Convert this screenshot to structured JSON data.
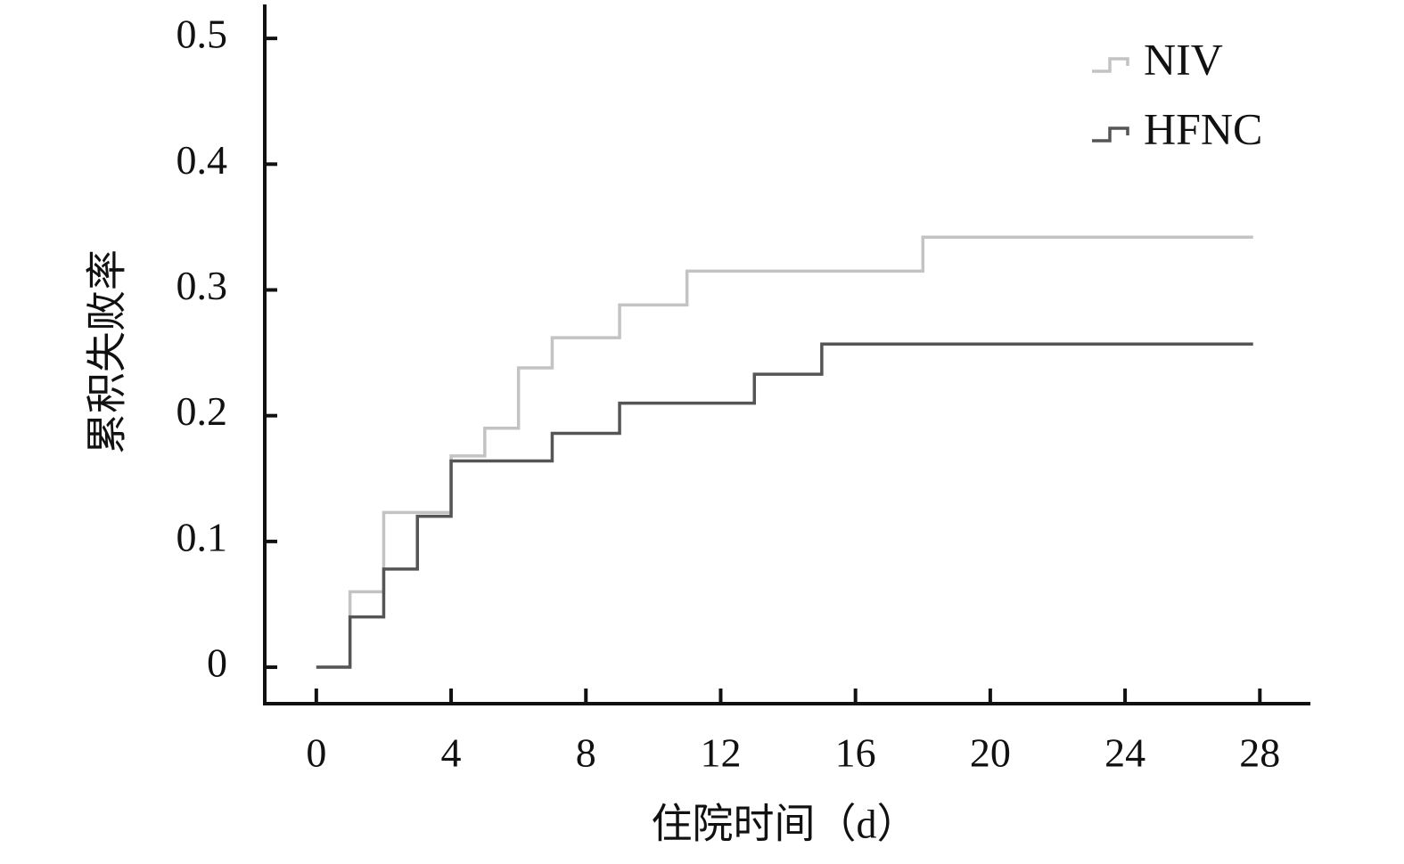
{
  "chart_data": {
    "type": "step",
    "x_label": "住院时间（d）",
    "y_label": "累积失败率",
    "xlim": [
      -1.53,
      29.5
    ],
    "xticks": [
      0,
      4,
      8,
      12,
      16,
      20,
      24,
      28
    ],
    "ylim": [
      -0.029,
      0.527
    ],
    "yticks": [
      0,
      0.1,
      0.2,
      0.3,
      0.4,
      0.5
    ],
    "legend": "upper right",
    "series": [
      {
        "name": "NIV",
        "color": "#c3c3c3",
        "x": [
          0,
          1,
          2,
          4,
          5,
          6,
          7,
          9,
          11,
          18,
          27.8
        ],
        "values": [
          0,
          0.06,
          0.123,
          0.168,
          0.19,
          0.238,
          0.262,
          0.288,
          0.315,
          0.342,
          0.342
        ]
      },
      {
        "name": "HFNC",
        "color": "#555555",
        "x": [
          0,
          1,
          2,
          3,
          4,
          7,
          9,
          13,
          15,
          27.8
        ],
        "values": [
          0,
          0.04,
          0.078,
          0.12,
          0.164,
          0.186,
          0.21,
          0.233,
          0.257,
          0.257
        ]
      }
    ]
  }
}
